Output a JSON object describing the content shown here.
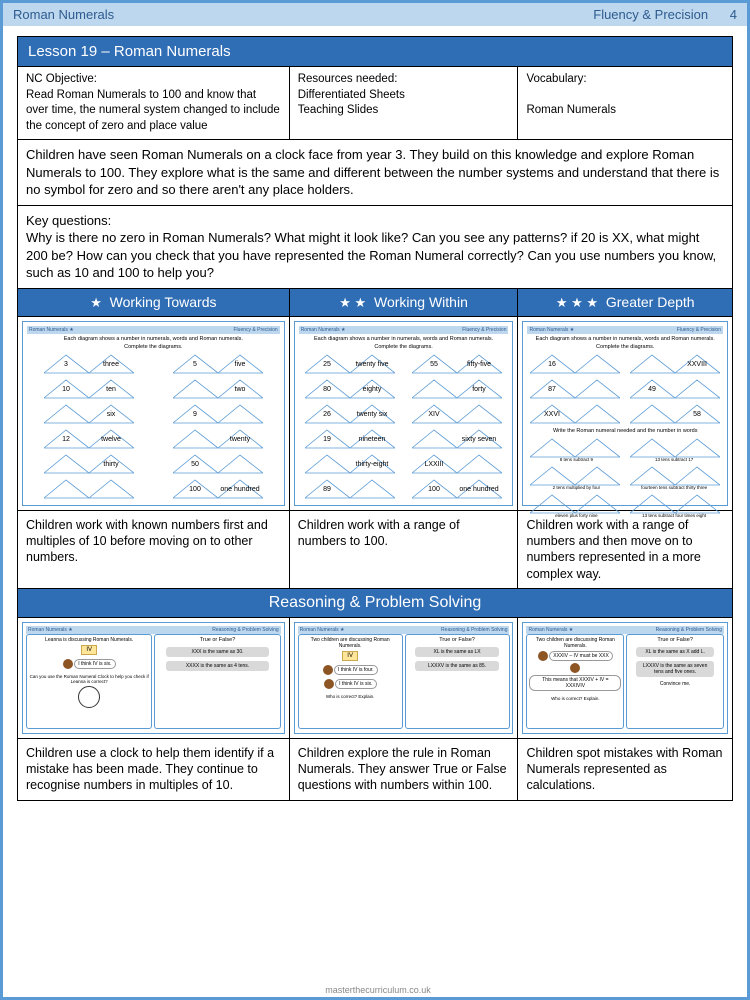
{
  "header": {
    "left": "Roman Numerals",
    "right": "Fluency & Precision",
    "pageNum": "4"
  },
  "lesson": {
    "title": "Lesson 19 – Roman Numerals",
    "objective": {
      "label": "NC Objective:",
      "text": "Read Roman Numerals to 100 and know that over time, the numeral system changed to include the concept of zero and place value"
    },
    "resources": {
      "label": "Resources needed:",
      "text": "Differentiated Sheets\nTeaching Slides"
    },
    "vocab": {
      "label": "Vocabulary:",
      "text": "Roman Numerals"
    },
    "intro": "Children have seen Roman Numerals on a clock face from year 3. They build on this knowledge and explore Roman Numerals to 100. They explore what is the same and different between the number systems and understand that there is no symbol for zero and so there aren't any place holders.",
    "keyq_label": "Key questions:",
    "keyq": "Why is there no zero in Roman Numerals? What might it look like? Can you see any patterns? if 20 is XX, what might 200 be? How can you check that you have represented the Roman Numeral correctly? Can you use numbers you know, such as 10 and 100 to help you?"
  },
  "levels": {
    "towards": {
      "title": "Working Towards",
      "desc": "Children work with known numbers first and multiples of 10 before moving on to other numbers."
    },
    "within": {
      "title": "Working Within",
      "desc": "Children work with a range of numbers to 100."
    },
    "greater": {
      "title": "Greater Depth",
      "desc": "Children work with a range of numbers and then move on to numbers represented in a more complex way."
    }
  },
  "thumbs": {
    "sub": "Each diagram shows a number in numerals, words and Roman numerals.",
    "sub2": "Complete the diagrams.",
    "towards": [
      [
        "3",
        "three",
        "5",
        "five"
      ],
      [
        "10",
        "ten",
        "",
        "two"
      ],
      [
        "",
        "six",
        "9",
        ""
      ],
      [
        "12",
        "twelve",
        "",
        "twenty"
      ],
      [
        "",
        "thirty",
        "50",
        ""
      ],
      [
        "",
        "",
        "100",
        "one hundred"
      ]
    ],
    "within": [
      [
        "25",
        "twenty five",
        "55",
        "fifty-five"
      ],
      [
        "80",
        "eighty",
        "",
        "forty"
      ],
      [
        "26",
        "twenty six",
        "XIV",
        ""
      ],
      [
        "19",
        "nineteen",
        "",
        "sixty seven"
      ],
      [
        "",
        "thirty-eight",
        "LXXIII",
        ""
      ],
      [
        "89",
        "",
        "100",
        "one hundred"
      ]
    ],
    "greater": [
      [
        "16",
        "",
        "",
        "XXVIII"
      ],
      [
        "87",
        "",
        "49",
        ""
      ],
      [
        "XXVI",
        "",
        "",
        "58"
      ]
    ],
    "greaterExtra": "Write the Roman numeral needed and the number in words",
    "greaterRows": [
      [
        "8 tens subtract 9",
        "13 tens subtract 17"
      ],
      [
        "2 tens multiplied by four",
        "fourteen tens subtract thirty three"
      ],
      [
        "eleven plus forty nine",
        "13 tens subtract four times eight"
      ]
    ]
  },
  "reasoning": {
    "title": "Reasoning & Problem Solving",
    "cards": [
      {
        "leftTitle": "Leanna is discussing Roman Numerals.",
        "iv": "IV",
        "bubble1": "I think IV is six.",
        "leftFoot": "Can you use the Roman Numeral Clock to help you check if Leanna is correct?",
        "rightTitle": "True or False?",
        "tf1": "XXX is the same as 30.",
        "tf2": "XXXX is the same as 4 tens.",
        "desc": "Children use a clock to help them identify if a mistake has been made. They continue to recognise numbers in multiples of 10."
      },
      {
        "leftTitle": "Two children are discussing Roman Numerals.",
        "iv": "IV",
        "bubble1": "I think IV is four.",
        "bubble2": "I think IV is six.",
        "leftFoot": "Who is correct? Explain.",
        "rightTitle": "True or False?",
        "tf1": "XL is the same as LX",
        "tf2": "LXXXV is the same as 85.",
        "desc": "Children explore the rule in Roman Numerals. They answer True or False questions with numbers within 100."
      },
      {
        "leftTitle": "Two children are discussing Roman Numerals.",
        "bubble1": "XXXIV – IV must be XXX",
        "bubble2": "This means that XXXIV + IV = XXXIVIV",
        "leftFoot": "Who is correct? Explain.",
        "rightTitle": "True or False?",
        "tf1": "XL is the same as X add L.",
        "tf2": "LXXXV is the same as seven tens and five ones.",
        "tf3": "Convince me.",
        "desc": "Children spot mistakes with Roman Numerals represented as calculations."
      }
    ]
  },
  "footer": "masterthecurriculum.co.uk"
}
